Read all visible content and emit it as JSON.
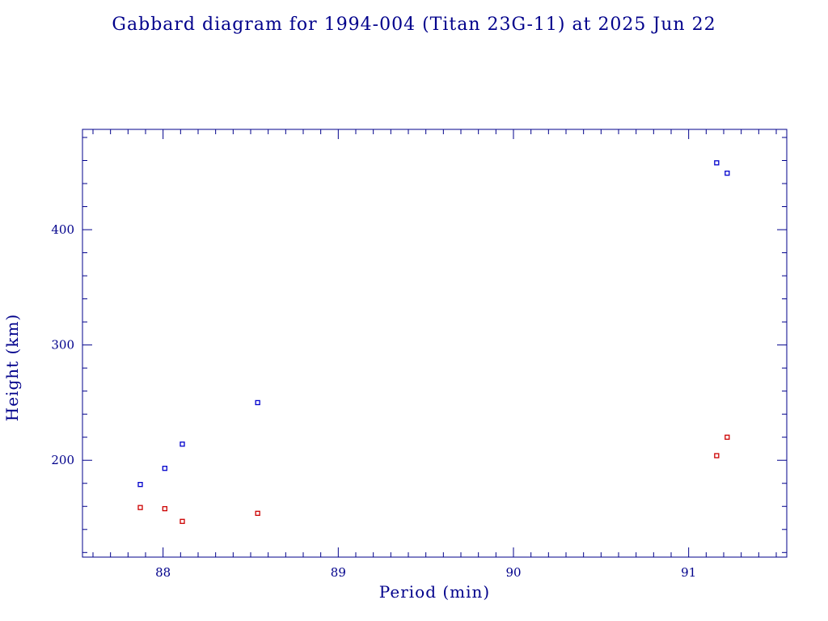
{
  "chart_data": {
    "type": "scatter",
    "title": "Gabbard diagram for 1994-004 (Titan 23G-11) at 2025 Jun 22",
    "xlabel": "Period (min)",
    "ylabel": "Height (km)",
    "xlim": [
      87.54,
      91.56
    ],
    "ylim": [
      116,
      487
    ],
    "x_major_ticks": [
      88,
      89,
      90,
      91
    ],
    "x_minor_step": 0.1,
    "y_major_ticks": [
      200,
      300,
      400
    ],
    "y_minor_step": 20,
    "grid": false,
    "series": [
      {
        "color": "#0000cc",
        "points": [
          {
            "x": 87.87,
            "y": 179
          },
          {
            "x": 88.01,
            "y": 193
          },
          {
            "x": 88.11,
            "y": 214
          },
          {
            "x": 88.54,
            "y": 250
          },
          {
            "x": 91.16,
            "y": 458
          },
          {
            "x": 91.22,
            "y": 449
          }
        ]
      },
      {
        "color": "#cc0000",
        "points": [
          {
            "x": 87.87,
            "y": 159
          },
          {
            "x": 88.01,
            "y": 158
          },
          {
            "x": 88.11,
            "y": 147
          },
          {
            "x": 88.54,
            "y": 154
          },
          {
            "x": 91.16,
            "y": 204
          },
          {
            "x": 91.22,
            "y": 220
          }
        ]
      }
    ]
  },
  "colors": {
    "axis": "#00008b",
    "text": "#00008b",
    "background": "#ffffff"
  }
}
